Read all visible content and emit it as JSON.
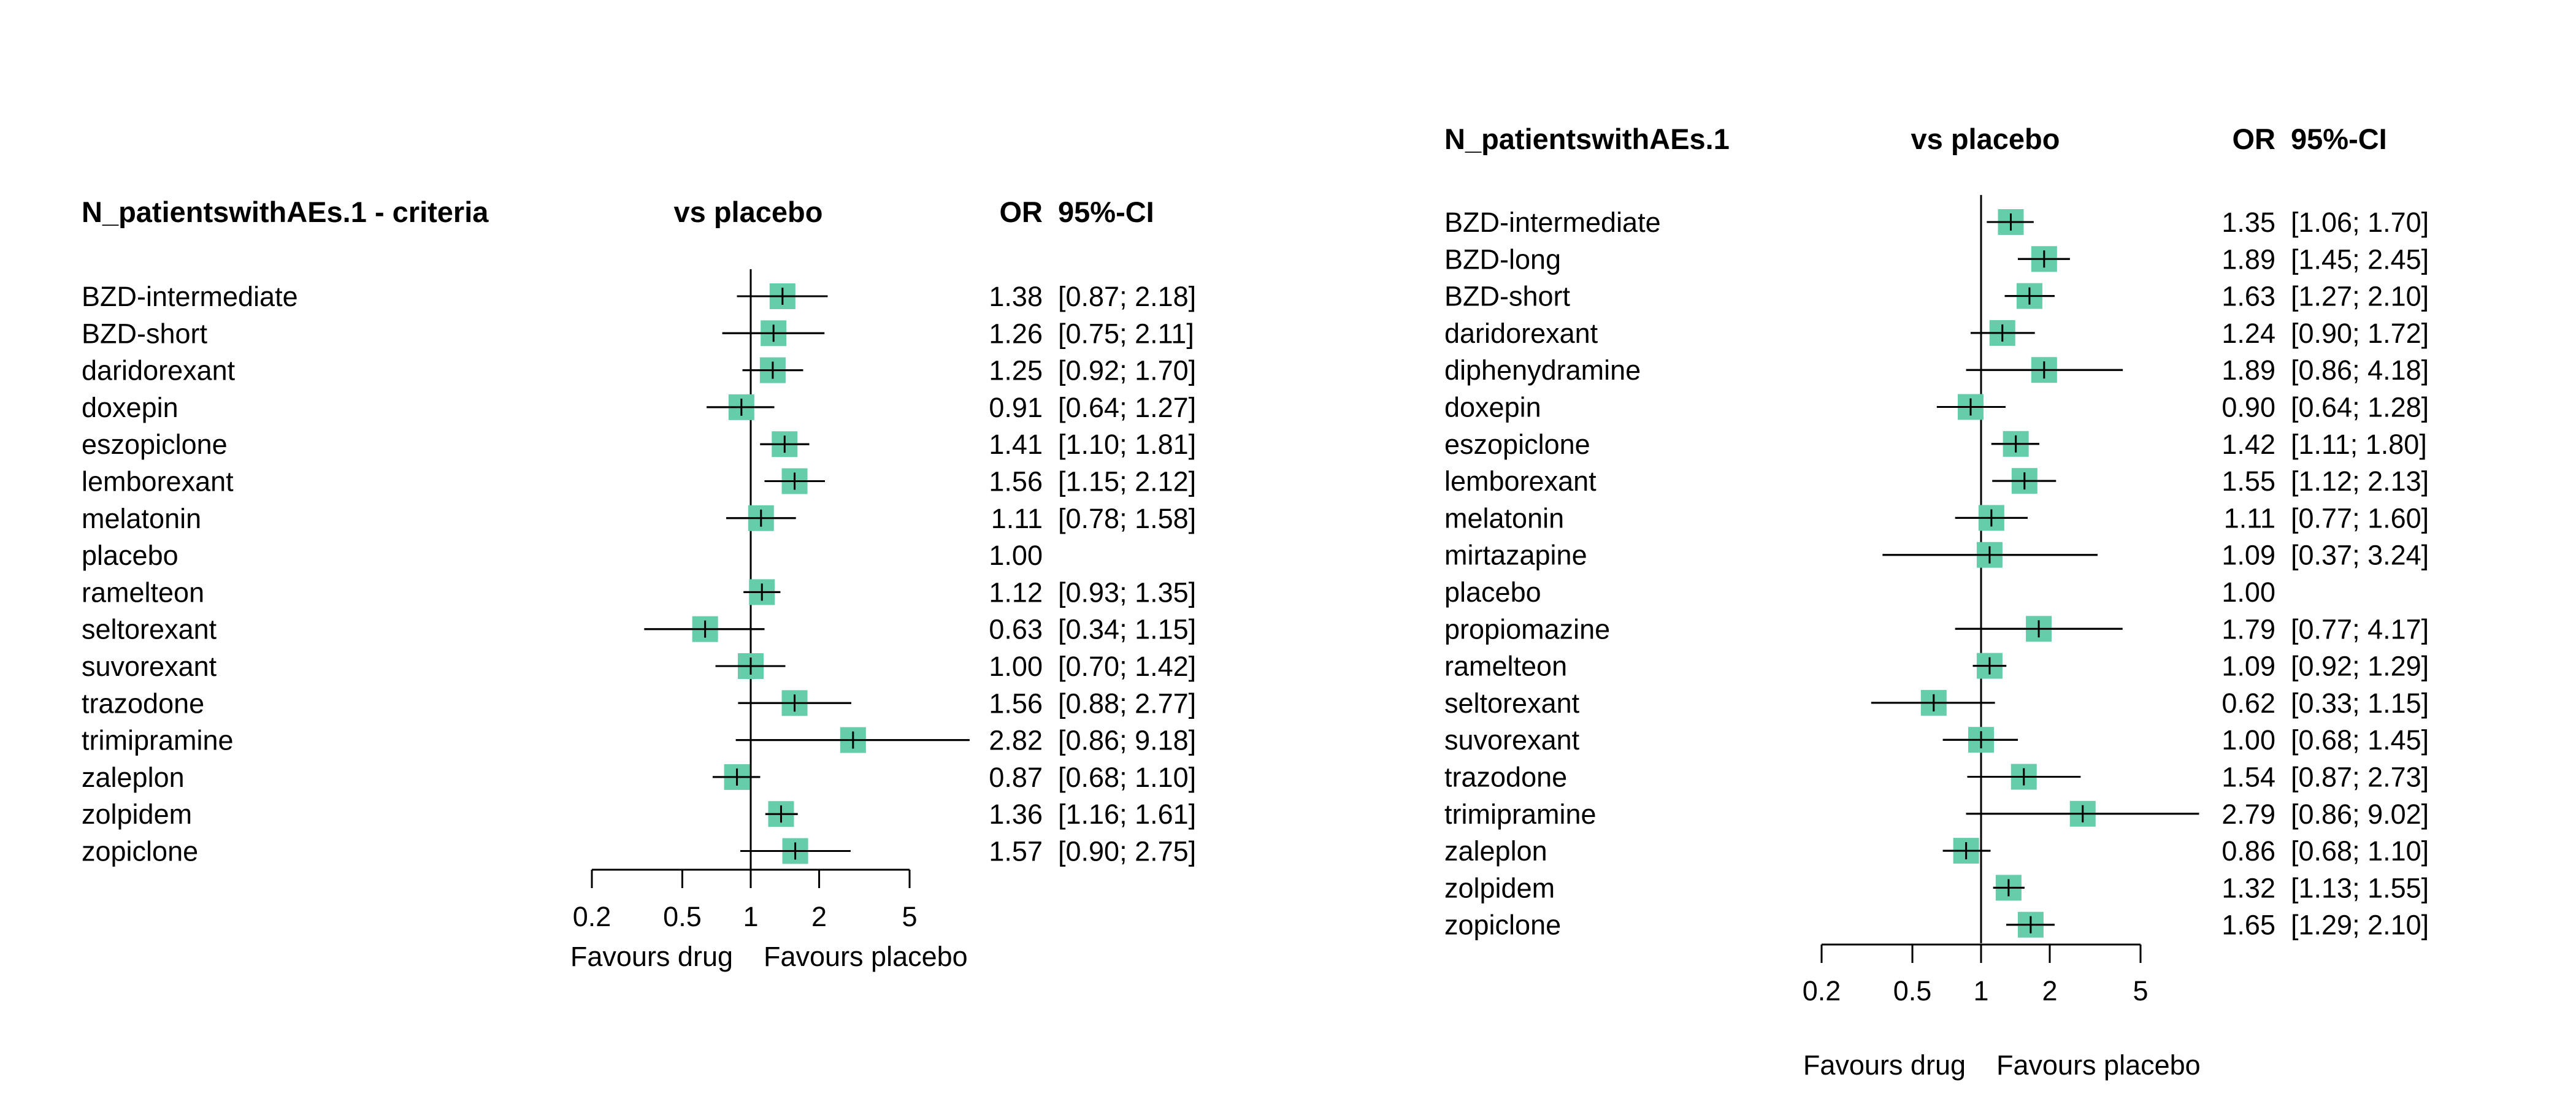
{
  "chart_data": [
    {
      "type": "forest",
      "header": {
        "label": "N_patientswithAEs.1 - criteria",
        "comparison": "vs placebo",
        "estimate": "OR",
        "ci": "95%-CI"
      },
      "x_scale": "log",
      "reference_value": 1,
      "xlim": [
        0.2,
        5
      ],
      "ticks": [
        0.2,
        0.5,
        1,
        2,
        5
      ],
      "tick_labels": [
        "0.2",
        "0.5",
        "1",
        "2",
        "5"
      ],
      "left_label": "Favours drug",
      "right_label": "Favours placebo",
      "marker_color": "#66CDAA",
      "rows": [
        {
          "label": "BZD-intermediate",
          "or": 1.38,
          "lo": 0.87,
          "hi": 2.18,
          "or_text": "1.38",
          "ci_text": "[0.87; 2.18]"
        },
        {
          "label": "BZD-short",
          "or": 1.26,
          "lo": 0.75,
          "hi": 2.11,
          "or_text": "1.26",
          "ci_text": "[0.75; 2.11]"
        },
        {
          "label": "daridorexant",
          "or": 1.25,
          "lo": 0.92,
          "hi": 1.7,
          "or_text": "1.25",
          "ci_text": "[0.92; 1.70]"
        },
        {
          "label": "doxepin",
          "or": 0.91,
          "lo": 0.64,
          "hi": 1.27,
          "or_text": "0.91",
          "ci_text": "[0.64; 1.27]"
        },
        {
          "label": "eszopiclone",
          "or": 1.41,
          "lo": 1.1,
          "hi": 1.81,
          "or_text": "1.41",
          "ci_text": "[1.10; 1.81]"
        },
        {
          "label": "lemborexant",
          "or": 1.56,
          "lo": 1.15,
          "hi": 2.12,
          "or_text": "1.56",
          "ci_text": "[1.15; 2.12]"
        },
        {
          "label": "melatonin",
          "or": 1.11,
          "lo": 0.78,
          "hi": 1.58,
          "or_text": "1.11",
          "ci_text": "[0.78; 1.58]"
        },
        {
          "label": "placebo",
          "or": null,
          "lo": null,
          "hi": null,
          "or_text": "1.00",
          "ci_text": ""
        },
        {
          "label": "ramelteon",
          "or": 1.12,
          "lo": 0.93,
          "hi": 1.35,
          "or_text": "1.12",
          "ci_text": "[0.93; 1.35]"
        },
        {
          "label": "seltorexant",
          "or": 0.63,
          "lo": 0.34,
          "hi": 1.15,
          "or_text": "0.63",
          "ci_text": "[0.34; 1.15]"
        },
        {
          "label": "suvorexant",
          "or": 1.0,
          "lo": 0.7,
          "hi": 1.42,
          "or_text": "1.00",
          "ci_text": "[0.70; 1.42]"
        },
        {
          "label": "trazodone",
          "or": 1.56,
          "lo": 0.88,
          "hi": 2.77,
          "or_text": "1.56",
          "ci_text": "[0.88; 2.77]"
        },
        {
          "label": "trimipramine",
          "or": 2.82,
          "lo": 0.86,
          "hi": 9.18,
          "or_text": "2.82",
          "ci_text": "[0.86; 9.18]"
        },
        {
          "label": "zaleplon",
          "or": 0.87,
          "lo": 0.68,
          "hi": 1.1,
          "or_text": "0.87",
          "ci_text": "[0.68; 1.10]"
        },
        {
          "label": "zolpidem",
          "or": 1.36,
          "lo": 1.16,
          "hi": 1.61,
          "or_text": "1.36",
          "ci_text": "[1.16; 1.61]"
        },
        {
          "label": "zopiclone",
          "or": 1.57,
          "lo": 0.9,
          "hi": 2.75,
          "or_text": "1.57",
          "ci_text": "[0.90; 2.75]"
        }
      ]
    },
    {
      "type": "forest",
      "header": {
        "label": "N_patientswithAEs.1",
        "comparison": "vs placebo",
        "estimate": "OR",
        "ci": "95%-CI"
      },
      "x_scale": "log",
      "reference_value": 1,
      "xlim": [
        0.2,
        5
      ],
      "ticks": [
        0.2,
        0.5,
        1,
        2,
        5
      ],
      "tick_labels": [
        "0.2",
        "0.5",
        "1",
        "2",
        "5"
      ],
      "left_label": "Favours drug",
      "right_label": "Favours placebo",
      "marker_color": "#66CDAA",
      "rows": [
        {
          "label": "BZD-intermediate",
          "or": 1.35,
          "lo": 1.06,
          "hi": 1.7,
          "or_text": "1.35",
          "ci_text": "[1.06; 1.70]"
        },
        {
          "label": "BZD-long",
          "or": 1.89,
          "lo": 1.45,
          "hi": 2.45,
          "or_text": "1.89",
          "ci_text": "[1.45; 2.45]"
        },
        {
          "label": "BZD-short",
          "or": 1.63,
          "lo": 1.27,
          "hi": 2.1,
          "or_text": "1.63",
          "ci_text": "[1.27; 2.10]"
        },
        {
          "label": "daridorexant",
          "or": 1.24,
          "lo": 0.9,
          "hi": 1.72,
          "or_text": "1.24",
          "ci_text": "[0.90; 1.72]"
        },
        {
          "label": "diphenydramine",
          "or": 1.89,
          "lo": 0.86,
          "hi": 4.18,
          "or_text": "1.89",
          "ci_text": "[0.86; 4.18]"
        },
        {
          "label": "doxepin",
          "or": 0.9,
          "lo": 0.64,
          "hi": 1.28,
          "or_text": "0.90",
          "ci_text": "[0.64; 1.28]"
        },
        {
          "label": "eszopiclone",
          "or": 1.42,
          "lo": 1.11,
          "hi": 1.8,
          "or_text": "1.42",
          "ci_text": "[1.11; 1.80]"
        },
        {
          "label": "lemborexant",
          "or": 1.55,
          "lo": 1.12,
          "hi": 2.13,
          "or_text": "1.55",
          "ci_text": "[1.12; 2.13]"
        },
        {
          "label": "melatonin",
          "or": 1.11,
          "lo": 0.77,
          "hi": 1.6,
          "or_text": "1.11",
          "ci_text": "[0.77; 1.60]"
        },
        {
          "label": "mirtazapine",
          "or": 1.09,
          "lo": 0.37,
          "hi": 3.24,
          "or_text": "1.09",
          "ci_text": "[0.37; 3.24]"
        },
        {
          "label": "placebo",
          "or": null,
          "lo": null,
          "hi": null,
          "or_text": "1.00",
          "ci_text": ""
        },
        {
          "label": "propiomazine",
          "or": 1.79,
          "lo": 0.77,
          "hi": 4.17,
          "or_text": "1.79",
          "ci_text": "[0.77; 4.17]"
        },
        {
          "label": "ramelteon",
          "or": 1.09,
          "lo": 0.92,
          "hi": 1.29,
          "or_text": "1.09",
          "ci_text": "[0.92; 1.29]"
        },
        {
          "label": "seltorexant",
          "or": 0.62,
          "lo": 0.33,
          "hi": 1.15,
          "or_text": "0.62",
          "ci_text": "[0.33; 1.15]"
        },
        {
          "label": "suvorexant",
          "or": 1.0,
          "lo": 0.68,
          "hi": 1.45,
          "or_text": "1.00",
          "ci_text": "[0.68; 1.45]"
        },
        {
          "label": "trazodone",
          "or": 1.54,
          "lo": 0.87,
          "hi": 2.73,
          "or_text": "1.54",
          "ci_text": "[0.87; 2.73]"
        },
        {
          "label": "trimipramine",
          "or": 2.79,
          "lo": 0.86,
          "hi": 9.02,
          "or_text": "2.79",
          "ci_text": "[0.86; 9.02]"
        },
        {
          "label": "zaleplon",
          "or": 0.86,
          "lo": 0.68,
          "hi": 1.1,
          "or_text": "0.86",
          "ci_text": "[0.68; 1.10]"
        },
        {
          "label": "zolpidem",
          "or": 1.32,
          "lo": 1.13,
          "hi": 1.55,
          "or_text": "1.32",
          "ci_text": "[1.13; 1.55]"
        },
        {
          "label": "zopiclone",
          "or": 1.65,
          "lo": 1.29,
          "hi": 2.1,
          "or_text": "1.65",
          "ci_text": "[1.29; 2.10]"
        }
      ]
    }
  ]
}
